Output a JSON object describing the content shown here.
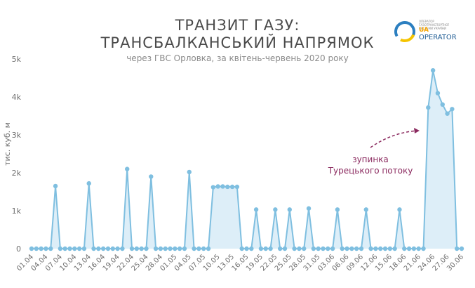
{
  "header": {
    "title_line1": "ТРАНЗИТ ГАЗУ:",
    "title_line2": "ТРАНСБАЛКАНСЬКИЙ НАПРЯМОК",
    "subtitle": "через ГВС Орловка, за квітень-червень 2020 року"
  },
  "logo": {
    "small_text": "ОПЕРАТОР ГАЗОТРАНСПОРТНОЇ СИСТЕМИ УКРАЇНИ",
    "ua": "UA",
    "operator": "OPERATOR"
  },
  "colors": {
    "line": "#7fbfe0",
    "fill": "#ddeef8",
    "annotation": "#8b2a5f",
    "axis_text": "#6e6e6e",
    "title": "#4a4a4a"
  },
  "chart_data": {
    "type": "area",
    "ylabel": "тис. куб. м",
    "ylim": [
      0,
      5000
    ],
    "yticks": [
      0,
      1000,
      2000,
      3000,
      4000,
      5000
    ],
    "ytick_labels": [
      "0",
      "1k",
      "2k",
      "3k",
      "4k",
      "5k"
    ],
    "xtick_labels": [
      "01.04",
      "04.04",
      "07.04",
      "10.04",
      "13.04",
      "16.04",
      "19.04",
      "22.04",
      "25.04",
      "28.04",
      "01.05",
      "04.05",
      "07.05",
      "10.05",
      "13.05",
      "16.05",
      "19.05",
      "22.05",
      "25.05",
      "28.05",
      "31.05",
      "03.06",
      "06.06",
      "09.06",
      "12.06",
      "15.06",
      "18.06",
      "21.06",
      "24.06",
      "27.06",
      "30.06"
    ],
    "grid": false,
    "annotation": {
      "line1": "зупинка",
      "line2": "Турецького потоку"
    },
    "values": [
      0,
      0,
      0,
      0,
      0,
      1650,
      0,
      0,
      0,
      0,
      0,
      0,
      1720,
      0,
      0,
      0,
      0,
      0,
      0,
      0,
      2100,
      0,
      0,
      0,
      0,
      1900,
      0,
      0,
      0,
      0,
      0,
      0,
      0,
      2020,
      0,
      0,
      0,
      0,
      1620,
      1640,
      1640,
      1630,
      1630,
      1630,
      0,
      0,
      0,
      1030,
      0,
      0,
      0,
      1030,
      0,
      0,
      1030,
      0,
      0,
      0,
      1060,
      0,
      0,
      0,
      0,
      0,
      1030,
      0,
      0,
      0,
      0,
      0,
      1030,
      0,
      0,
      0,
      0,
      0,
      0,
      1030,
      0,
      0,
      0,
      0,
      0,
      3720,
      4700,
      4100,
      3800,
      3560,
      3680,
      0,
      0
    ]
  }
}
